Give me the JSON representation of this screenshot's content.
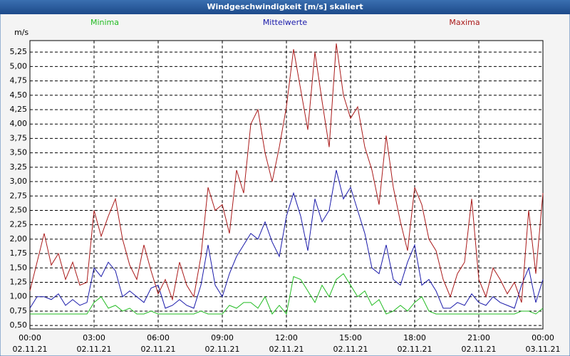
{
  "chart_data": {
    "type": "line",
    "title": "Windgeschwindigkeit [m/s] skaliert",
    "y_label": "m/s",
    "x": [
      0,
      20,
      40,
      60,
      80,
      100,
      120,
      140,
      160,
      180,
      200,
      220,
      240,
      260,
      280,
      300,
      320,
      340,
      360,
      380,
      400,
      420,
      440,
      460,
      480,
      500,
      520,
      540,
      560,
      580,
      600,
      620,
      640,
      660,
      680,
      700,
      720,
      740,
      760,
      780,
      800,
      820,
      840,
      860,
      880,
      900,
      920,
      940,
      960,
      980,
      1000,
      1020,
      1040,
      1060,
      1080,
      1100,
      1120,
      1140,
      1160,
      1180,
      1200,
      1220,
      1240,
      1260,
      1280,
      1300,
      1320,
      1340,
      1360,
      1380,
      1400,
      1420,
      1440
    ],
    "xlim": [
      0,
      1440
    ],
    "xticks": [
      {
        "value": 0,
        "label": "00:00",
        "date": "02.11.21"
      },
      {
        "value": 180,
        "label": "03:00",
        "date": "02.11.21"
      },
      {
        "value": 360,
        "label": "06:00",
        "date": "02.11.21"
      },
      {
        "value": 540,
        "label": "09:00",
        "date": "02.11.21"
      },
      {
        "value": 720,
        "label": "12:00",
        "date": "02.11.21"
      },
      {
        "value": 900,
        "label": "15:00",
        "date": "02.11.21"
      },
      {
        "value": 1080,
        "label": "18:00",
        "date": "02.11.21"
      },
      {
        "value": 1260,
        "label": "21:00",
        "date": "02.11.21"
      },
      {
        "value": 1440,
        "label": "00:00",
        "date": "03.11.21"
      }
    ],
    "ylim": [
      0.44,
      5.45
    ],
    "yticks": [
      {
        "value": 0.5,
        "label": "0,50"
      },
      {
        "value": 0.75,
        "label": "0,75"
      },
      {
        "value": 1.0,
        "label": "1,00"
      },
      {
        "value": 1.25,
        "label": "1,25"
      },
      {
        "value": 1.5,
        "label": "1,50"
      },
      {
        "value": 1.75,
        "label": "1,75"
      },
      {
        "value": 2.0,
        "label": "2,00"
      },
      {
        "value": 2.25,
        "label": "2,25"
      },
      {
        "value": 2.5,
        "label": "2,50"
      },
      {
        "value": 2.75,
        "label": "2,75"
      },
      {
        "value": 3.0,
        "label": "3,00"
      },
      {
        "value": 3.25,
        "label": "3,25"
      },
      {
        "value": 3.5,
        "label": "3,50"
      },
      {
        "value": 3.75,
        "label": "3,75"
      },
      {
        "value": 4.0,
        "label": "4,00"
      },
      {
        "value": 4.25,
        "label": "4,25"
      },
      {
        "value": 4.5,
        "label": "4,50"
      },
      {
        "value": 4.75,
        "label": "4,75"
      },
      {
        "value": 5.0,
        "label": "5,00"
      },
      {
        "value": 5.25,
        "label": "5,25"
      }
    ],
    "grid": true,
    "series": [
      {
        "name": "Minima",
        "color": "#22bb22",
        "values": [
          0.7,
          0.7,
          0.7,
          0.7,
          0.7,
          0.7,
          0.7,
          0.7,
          0.7,
          0.9,
          1.0,
          0.8,
          0.85,
          0.75,
          0.8,
          0.7,
          0.7,
          0.75,
          0.7,
          0.7,
          0.7,
          0.7,
          0.7,
          0.7,
          0.75,
          0.7,
          0.7,
          0.7,
          0.85,
          0.8,
          0.9,
          0.9,
          0.8,
          1.0,
          0.7,
          0.85,
          0.7,
          1.35,
          1.3,
          1.1,
          0.9,
          1.2,
          1.0,
          1.3,
          1.4,
          1.2,
          1.0,
          1.1,
          0.85,
          0.95,
          0.7,
          0.75,
          0.85,
          0.75,
          0.9,
          1.0,
          0.75,
          0.7,
          0.7,
          0.7,
          0.7,
          0.7,
          0.7,
          0.7,
          0.7,
          0.7,
          0.7,
          0.7,
          0.7,
          0.75,
          0.75,
          0.7,
          0.8
        ]
      },
      {
        "name": "Mittelwerte",
        "color": "#1a1aaa",
        "values": [
          0.8,
          1.0,
          1.0,
          0.95,
          1.05,
          0.85,
          0.95,
          0.85,
          0.9,
          1.5,
          1.35,
          1.6,
          1.45,
          1.0,
          1.1,
          1.0,
          0.9,
          1.15,
          1.2,
          0.8,
          0.85,
          0.95,
          0.85,
          0.8,
          1.2,
          1.9,
          1.2,
          1.0,
          1.4,
          1.7,
          1.9,
          2.1,
          2.0,
          2.3,
          1.95,
          1.7,
          2.4,
          2.8,
          2.4,
          1.8,
          2.7,
          2.3,
          2.5,
          3.2,
          2.7,
          2.9,
          2.5,
          2.1,
          1.5,
          1.4,
          1.9,
          1.3,
          1.2,
          1.6,
          1.9,
          1.2,
          1.3,
          1.1,
          0.8,
          0.8,
          0.9,
          0.85,
          1.05,
          0.9,
          0.85,
          1.0,
          0.9,
          0.85,
          0.8,
          1.2,
          1.5,
          0.9,
          1.3
        ]
      },
      {
        "name": "Maxima",
        "color": "#aa1a1a",
        "values": [
          1.1,
          1.6,
          2.1,
          1.55,
          1.75,
          1.3,
          1.6,
          1.2,
          1.25,
          2.5,
          2.05,
          2.4,
          2.7,
          2.0,
          1.55,
          1.3,
          1.9,
          1.45,
          1.05,
          1.3,
          0.95,
          1.6,
          1.2,
          1.0,
          1.7,
          2.9,
          2.5,
          2.6,
          2.1,
          3.2,
          2.8,
          4.0,
          4.25,
          3.5,
          3.0,
          3.6,
          4.3,
          5.3,
          4.6,
          3.9,
          5.25,
          4.4,
          3.6,
          5.4,
          4.5,
          4.1,
          4.3,
          3.6,
          3.2,
          2.6,
          3.8,
          2.9,
          2.3,
          1.8,
          2.9,
          2.6,
          2.0,
          1.8,
          1.3,
          1.0,
          1.4,
          1.6,
          2.7,
          1.3,
          1.0,
          1.5,
          1.3,
          1.05,
          1.25,
          0.9,
          2.5,
          1.4,
          2.8
        ]
      }
    ]
  }
}
